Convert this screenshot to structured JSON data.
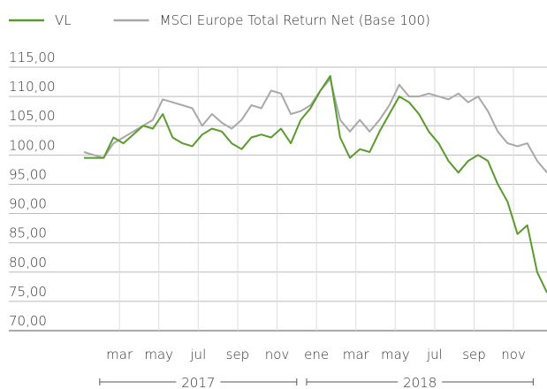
{
  "chart_data": {
    "type": "line",
    "x": [
      0.2,
      0.7,
      1.2,
      1.7,
      2.2,
      2.7,
      3.2,
      3.7,
      4.2,
      4.7,
      5.2,
      5.7,
      6.2,
      6.7,
      7.2,
      7.7,
      8.2,
      8.7,
      9.2,
      9.7,
      10.2,
      10.7,
      11.2,
      11.7,
      12.2,
      12.7,
      13.2,
      13.7,
      14.2,
      14.7,
      15.2,
      15.7,
      16.2,
      16.7,
      17.2,
      17.7,
      18.2,
      18.7,
      19.2,
      19.7,
      20.2,
      20.7,
      21.2,
      21.7,
      22.2,
      22.7,
      23.2,
      23.7
    ],
    "series": [
      {
        "name": "VL",
        "color": "#5a9a2e",
        "values": [
          99.5,
          99.5,
          99.5,
          103,
          102,
          103.5,
          105,
          104.5,
          107,
          103,
          102,
          101.5,
          103.5,
          104.5,
          104,
          102,
          101,
          103,
          103.5,
          103,
          104.5,
          102,
          106,
          108,
          111,
          113.5,
          103,
          99.5,
          101,
          100.5,
          104,
          107,
          110,
          109,
          107,
          104,
          102,
          99,
          97,
          99,
          100,
          99,
          95,
          92,
          86.5,
          88,
          80,
          76.5
        ]
      },
      {
        "name": "MSCI Europe Total Return Net (Base 100)",
        "color": "#a8a8a8",
        "values": [
          100.5,
          100,
          99.5,
          102,
          103,
          104,
          105,
          106,
          109.5,
          109,
          108.5,
          108,
          105,
          107,
          105.5,
          104.5,
          106,
          108.5,
          108,
          111,
          110.5,
          107,
          107.5,
          108.5,
          111,
          113,
          106,
          104,
          106,
          104,
          106,
          108.5,
          112,
          110,
          110,
          110.5,
          110,
          109.5,
          110.5,
          109,
          110,
          107.5,
          104,
          102,
          101.5,
          102,
          99,
          97
        ]
      }
    ],
    "xlim": [
      0.2,
      23.7
    ],
    "xticks": [
      {
        "value": 2,
        "label": "mar"
      },
      {
        "value": 4,
        "label": "may"
      },
      {
        "value": 6,
        "label": "jul"
      },
      {
        "value": 8,
        "label": "sep"
      },
      {
        "value": 10,
        "label": "nov"
      },
      {
        "value": 12,
        "label": "ene"
      },
      {
        "value": 14,
        "label": "mar"
      },
      {
        "value": 16,
        "label": "may"
      },
      {
        "value": 18,
        "label": "jul"
      },
      {
        "value": 20,
        "label": "sep"
      },
      {
        "value": 22,
        "label": "nov"
      }
    ],
    "x_groups": [
      {
        "label": "2017",
        "span": [
          1,
          11
        ]
      },
      {
        "label": "2018",
        "span": [
          11.5,
          23
        ]
      }
    ],
    "ylim": [
      70,
      115
    ],
    "yticks": [
      {
        "value": 70,
        "label": "70,00"
      },
      {
        "value": 75,
        "label": "75,00"
      },
      {
        "value": 80,
        "label": "80,00"
      },
      {
        "value": 85,
        "label": "85,00"
      },
      {
        "value": 90,
        "label": "90,00"
      },
      {
        "value": 95,
        "label": "95,00"
      },
      {
        "value": 100,
        "label": "100,00"
      },
      {
        "value": 105,
        "label": "105,00"
      },
      {
        "value": 110,
        "label": "110,00"
      },
      {
        "value": 115,
        "label": "115,00"
      }
    ],
    "grid": true,
    "legend": "top"
  }
}
